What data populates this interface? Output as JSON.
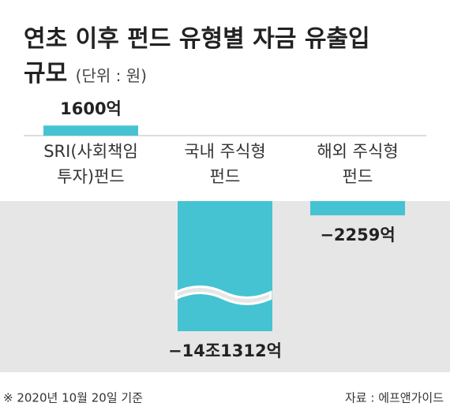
{
  "chart_data": {
    "type": "bar",
    "title": "연초 이후 펀드 유형별 자금 유출입 규모",
    "subtitle": "(단위 : 원)",
    "categories": [
      "SRI(사회책임\n투자)펀드",
      "국내 주식형\n펀드",
      "해외 주식형\n펀드"
    ],
    "values": [
      1600,
      -141312,
      -2259
    ],
    "value_labels": [
      "1600억",
      "−14조1312억",
      "−2259억"
    ],
    "color": "#45c3d2",
    "note": "※ 2020년 10월 20일 기준",
    "source": "자료 : 에프앤가이드"
  }
}
